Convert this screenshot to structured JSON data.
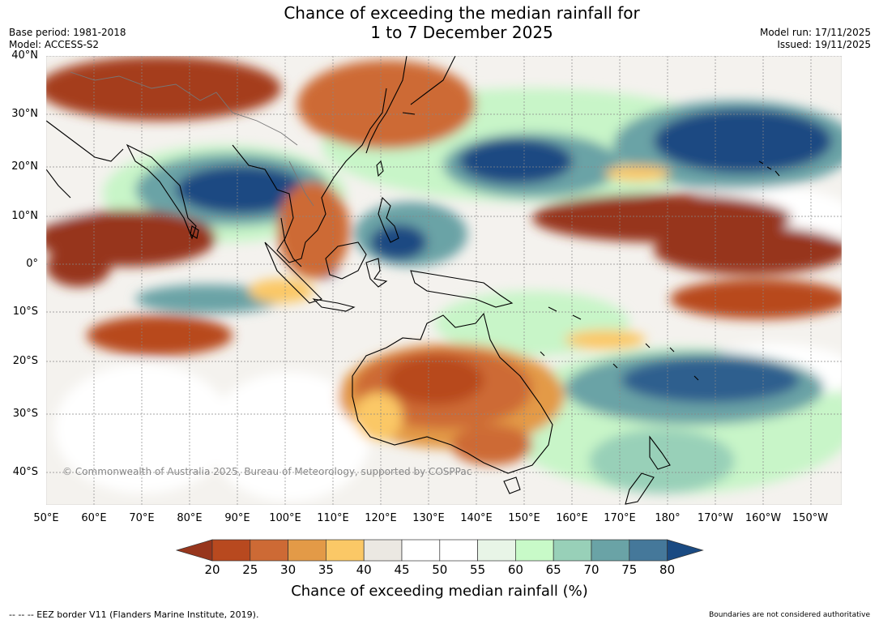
{
  "title": {
    "line1": "Chance of exceeding the median rainfall for",
    "line2": "1 to 7 December 2025"
  },
  "meta_left": {
    "base_period": "Base period: 1981-2018",
    "model": "Model: ACCESS-S2"
  },
  "meta_right": {
    "model_run": "Model run: 17/11/2025",
    "issued": "Issued: 19/11/2025"
  },
  "latitude_labels": [
    "40°N",
    "30°N",
    "20°N",
    "10°N",
    "0°",
    "10°S",
    "20°S",
    "30°S",
    "40°S"
  ],
  "longitude_labels": [
    "50°E",
    "60°E",
    "70°E",
    "80°E",
    "90°E",
    "100°E",
    "110°E",
    "120°E",
    "130°E",
    "140°E",
    "150°E",
    "160°E",
    "170°E",
    "180°",
    "170°W",
    "160°W",
    "150°W"
  ],
  "colorbar": {
    "ticks": [
      "20",
      "25",
      "30",
      "35",
      "40",
      "45",
      "50",
      "55",
      "60",
      "65",
      "70",
      "75",
      "80"
    ],
    "colors": [
      "#97361d",
      "#b8491f",
      "#cd6a35",
      "#e39a47",
      "#fbc866",
      "#ebe8e2",
      "#ffffff",
      "#ffffff",
      "#e8f5e7",
      "#c8fac8",
      "#98d0b8",
      "#6aa3a6",
      "#45789a",
      "#1a4a82"
    ],
    "label": "Chance of exceeding median rainfall (%)"
  },
  "copyright": "© Commonwealth of Australia 2025, Bureau of Meteorology, supported by COSPPac",
  "footer_left": "--  --  -- EEZ border V11 (Flanders Marine Institute, 2019).",
  "footer_right": "Boundaries are not considered authoritative"
}
